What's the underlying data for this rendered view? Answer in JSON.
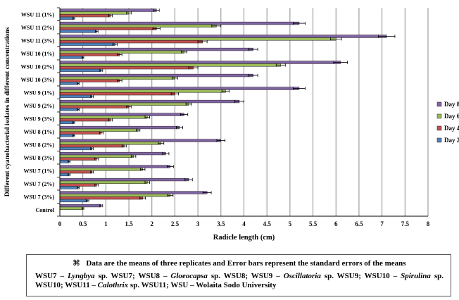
{
  "chart_data": {
    "type": "bar",
    "orientation": "horizontal",
    "xlabel": "Radicle length (cm)",
    "ylabel": "Different cyanobacterial isolates in different concentrations",
    "xlim": [
      0,
      8
    ],
    "xticks": [
      "0",
      "0.5",
      "1",
      "1.5",
      "2",
      "2.5",
      "3",
      "3.5",
      "4",
      "4.5",
      "5",
      "5.5",
      "6",
      "6.5",
      "7",
      "7.5",
      "8"
    ],
    "grid": "vertical",
    "legend_position": "right",
    "categories": [
      "WSU 11 (1%)",
      "WSU 11 (2%)",
      "WSU 11 (3%)",
      "WSU 10 (1%)",
      "WSU 10 (2%)",
      "WSU 10 (3%)",
      "WSU 9 (1%)",
      "WSU 9 (2%)",
      "WSU 9 (3%)",
      "WSU 8 (1%)",
      "WSU 8 (2%)",
      "WSU 8 (3%)",
      "WSU 7 (1%)",
      "WSU 7 (2%)",
      "WSU 7 (3%)",
      "Control"
    ],
    "series": [
      {
        "name": "Day 2",
        "color": "#4f81bd",
        "values": [
          0.3,
          0.8,
          1.2,
          0.5,
          0.9,
          0.4,
          0.7,
          0.4,
          0.3,
          0.3,
          0.7,
          0.2,
          0.2,
          0.4,
          0.6,
          null
        ],
        "errors": [
          0.02,
          0.03,
          0.05,
          0.02,
          0.03,
          0.02,
          0.03,
          0.02,
          0.02,
          0.02,
          0.03,
          0.02,
          0.02,
          0.02,
          0.03,
          null
        ]
      },
      {
        "name": "Day 4",
        "color": "#c0504d",
        "values": [
          1.1,
          2.1,
          3.1,
          1.3,
          2.9,
          1.3,
          2.5,
          1.5,
          1.1,
          0.9,
          1.4,
          0.8,
          0.7,
          0.8,
          1.8,
          null
        ],
        "errors": [
          0.04,
          0.08,
          0.1,
          0.05,
          0.1,
          0.05,
          0.08,
          0.05,
          0.04,
          0.04,
          0.05,
          0.04,
          0.03,
          0.04,
          0.06,
          null
        ]
      },
      {
        "name": "Day 6",
        "color": "#9bbb59",
        "values": [
          1.5,
          3.4,
          6.0,
          2.7,
          4.8,
          2.5,
          3.6,
          2.8,
          1.9,
          1.7,
          2.2,
          1.6,
          1.8,
          1.9,
          2.4,
          0.5
        ],
        "errors": [
          0.05,
          0.1,
          0.12,
          0.06,
          0.1,
          0.06,
          0.08,
          0.06,
          0.05,
          0.04,
          0.06,
          0.05,
          0.05,
          0.05,
          0.06,
          0.02
        ]
      },
      {
        "name": "Day 8",
        "color": "#8064a2",
        "values": [
          2.1,
          5.2,
          7.1,
          4.2,
          6.1,
          4.2,
          5.2,
          3.9,
          2.7,
          2.6,
          3.5,
          2.3,
          2.4,
          2.8,
          3.2,
          0.9
        ],
        "errors": [
          0.06,
          0.13,
          0.18,
          0.1,
          0.15,
          0.1,
          0.13,
          0.1,
          0.08,
          0.07,
          0.09,
          0.07,
          0.07,
          0.08,
          0.09,
          0.03
        ]
      }
    ]
  },
  "notes": {
    "mark": "⌘",
    "line1": "Data are the means of three replicates and Error bars represent the standard errors of the means",
    "abbreviations": [
      {
        "code": "WSU7 –",
        "genus": "Lyngbya",
        "rest": "sp. WSU7;"
      },
      {
        "code": "WSU8 –",
        "genus": "Gloeocapsa",
        "rest": "sp. WSU8;"
      },
      {
        "code": "WSU9 –",
        "genus": "Oscillatoria",
        "rest": "sp. WSU9;"
      },
      {
        "code": "WSU10 –",
        "genus": "Spirulina",
        "rest": "sp. WSU10;"
      },
      {
        "code": "WSU11 –",
        "genus": "Calothrix",
        "rest": "sp. WSU11;"
      },
      {
        "code": "WSU –",
        "genus": "",
        "rest": "Wolaita Sodo University"
      }
    ]
  }
}
